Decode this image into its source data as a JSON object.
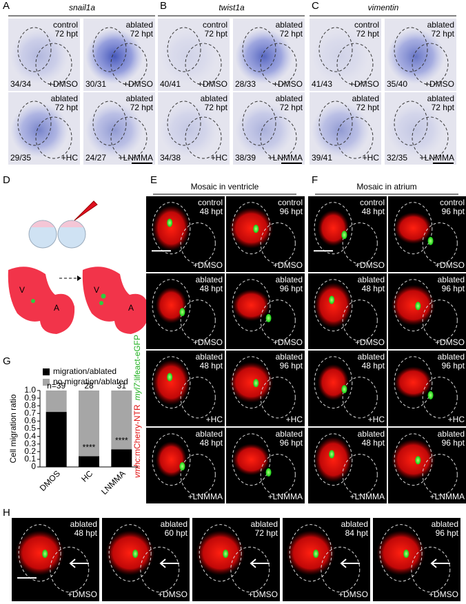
{
  "panels": {
    "A": {
      "letter": "A",
      "title": "snail1a",
      "images": [
        {
          "condition": "control",
          "time": "72 hpt",
          "count": "34/34",
          "treatment": "+DMSO"
        },
        {
          "condition": "ablated",
          "time": "72 hpt",
          "count": "30/31",
          "treatment": "+DMSO"
        },
        {
          "condition": "ablated",
          "time": "72 hpt",
          "count": "29/35",
          "treatment": "+HC"
        },
        {
          "condition": "ablated",
          "time": "72 hpt",
          "count": "24/27",
          "treatment": "+LNMMA"
        }
      ]
    },
    "B": {
      "letter": "B",
      "title": "twist1a",
      "images": [
        {
          "condition": "control",
          "time": "72 hpt",
          "count": "40/41",
          "treatment": "+DMSO"
        },
        {
          "condition": "ablated",
          "time": "72 hpt",
          "count": "28/33",
          "treatment": "+DMSO"
        },
        {
          "condition": "ablated",
          "time": "72 hpt",
          "count": "34/38",
          "treatment": "+HC"
        },
        {
          "condition": "ablated",
          "time": "72 hpt",
          "count": "38/39",
          "treatment": "+LNMMA"
        }
      ]
    },
    "C": {
      "letter": "C",
      "title": "vimentin",
      "images": [
        {
          "condition": "control",
          "time": "72 hpt",
          "count": "41/43",
          "treatment": "+DMSO"
        },
        {
          "condition": "ablated",
          "time": "72 hpt",
          "count": "35/40",
          "treatment": "+DMSO"
        },
        {
          "condition": "ablated",
          "time": "72 hpt",
          "count": "39/41",
          "treatment": "+HC"
        },
        {
          "condition": "ablated",
          "time": "72 hpt",
          "count": "32/35",
          "treatment": "+LNMMA"
        }
      ]
    },
    "D": {
      "letter": "D",
      "heart_labels": [
        "V",
        "A",
        "V",
        "A"
      ]
    },
    "E": {
      "letter": "E",
      "title": "Mosaic in ventricle",
      "images": [
        {
          "condition": "control",
          "time": "48 hpt",
          "treatment": "+DMSO"
        },
        {
          "condition": "control",
          "time": "96 hpt",
          "treatment": "+DMSO"
        },
        {
          "condition": "ablated",
          "time": "48 hpt",
          "treatment": "+DMSO"
        },
        {
          "condition": "ablated",
          "time": "96 hpt",
          "treatment": "+DMSO"
        },
        {
          "condition": "ablated",
          "time": "48 hpt",
          "treatment": "+HC"
        },
        {
          "condition": "ablated",
          "time": "96 hpt",
          "treatment": "+HC"
        },
        {
          "condition": "ablated",
          "time": "48 hpt",
          "treatment": "+LNMMA"
        },
        {
          "condition": "ablated",
          "time": "96 hpt",
          "treatment": "+LNMMA"
        }
      ]
    },
    "F": {
      "letter": "F",
      "title": "Mosaic in atrium",
      "images": [
        {
          "condition": "control",
          "time": "48 hpt",
          "treatment": "+DMSO"
        },
        {
          "condition": "control",
          "time": "96 hpt",
          "treatment": "+DMSO"
        },
        {
          "condition": "ablated",
          "time": "48 hpt",
          "treatment": "+DMSO"
        },
        {
          "condition": "ablated",
          "time": "96 hpt",
          "treatment": "+DMSO"
        },
        {
          "condition": "ablated",
          "time": "48 hpt",
          "treatment": "+HC"
        },
        {
          "condition": "ablated",
          "time": "96 hpt",
          "treatment": "+HC"
        },
        {
          "condition": "ablated",
          "time": "48 hpt",
          "treatment": "+LNMMA"
        },
        {
          "condition": "ablated",
          "time": "96 hpt",
          "treatment": "+LNMMA"
        }
      ]
    },
    "H": {
      "letter": "H",
      "images": [
        {
          "condition": "ablated",
          "time": "48 hpt",
          "treatment": "+DMSO"
        },
        {
          "condition": "ablated",
          "time": "60 hpt",
          "treatment": "+DMSO"
        },
        {
          "condition": "ablated",
          "time": "72 hpt",
          "treatment": "+DMSO"
        },
        {
          "condition": "ablated",
          "time": "84 hpt",
          "treatment": "+DMSO"
        },
        {
          "condition": "ablated",
          "time": "96 hpt",
          "treatment": "+DMSO"
        }
      ]
    }
  },
  "side_label": {
    "green_gene": "myl7",
    "green_rest": ":lifeact-eGFP",
    "red_gene": "vmhc",
    "red_rest": ":mCherry-NTR"
  },
  "chart_data": {
    "type": "bar",
    "panel_label": "G",
    "stacked": true,
    "ylabel": "Cell migration ratio",
    "categories": [
      "DMOS",
      "HC",
      "LNMMA"
    ],
    "series": [
      {
        "name": "migration/ablated",
        "color": "#000000",
        "values": [
          0.72,
          0.14,
          0.23
        ]
      },
      {
        "name": "no migration/ablated",
        "color": "#a6a6a6",
        "values": [
          0.28,
          0.86,
          0.77
        ]
      }
    ],
    "n_labels": [
      "n=39",
      "28",
      "31"
    ],
    "significance": [
      null,
      "****",
      "****"
    ],
    "ylim": [
      0,
      1
    ],
    "yticks": [
      0,
      0.1,
      0.2,
      0.3,
      0.4,
      0.5,
      0.6,
      0.7,
      0.8,
      0.9,
      {
        "value": 1,
        "label": "1.0"
      }
    ]
  }
}
